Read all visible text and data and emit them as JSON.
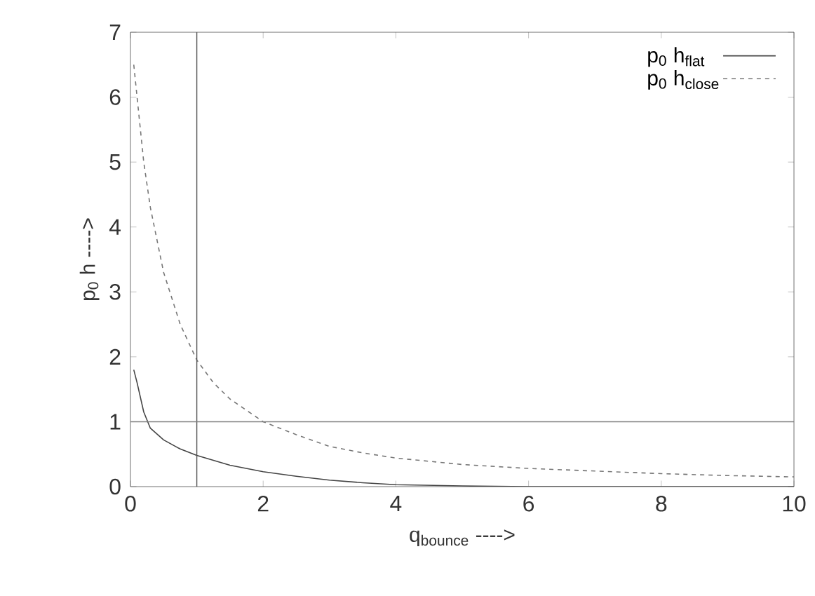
{
  "chart_data": {
    "type": "line",
    "xlabel": "q$_{bounce}$ ---->",
    "ylabel": "p$_{0}$ h ---->",
    "xlim": [
      0,
      10
    ],
    "ylim": [
      0,
      7
    ],
    "xticks": [
      0,
      2,
      4,
      6,
      8,
      10
    ],
    "yticks": [
      0,
      1,
      2,
      3,
      4,
      5,
      6,
      7
    ],
    "legend": "top right",
    "series": [
      {
        "name": "p$_{0}$ h$_{flat}$",
        "color": "#444444",
        "line_style": "solid",
        "x": [
          0.05,
          0.1,
          0.2,
          0.3,
          0.5,
          0.75,
          1,
          1.5,
          2,
          2.5,
          3,
          3.5,
          4,
          5,
          6,
          8,
          10
        ],
        "values": [
          1.8,
          1.6,
          1.15,
          0.9,
          0.72,
          0.58,
          0.48,
          0.33,
          0.23,
          0.16,
          0.1,
          0.06,
          0.03,
          0.01,
          0,
          0,
          0
        ]
      },
      {
        "name": "p$_{0}$ h$_{close}$",
        "color": "#777777",
        "line_style": "dashed",
        "x": [
          0.05,
          0.1,
          0.2,
          0.3,
          0.5,
          0.75,
          1,
          1.25,
          1.5,
          2,
          2.5,
          3,
          3.5,
          4,
          5,
          6,
          7,
          8,
          9,
          10
        ],
        "values": [
          6.5,
          6.0,
          5.0,
          4.3,
          3.3,
          2.5,
          1.95,
          1.6,
          1.35,
          1.0,
          0.8,
          0.62,
          0.52,
          0.44,
          0.34,
          0.28,
          0.24,
          0.2,
          0.17,
          0.15
        ]
      }
    ],
    "ref_lines": [
      {
        "axis": "x",
        "value": 1,
        "color": "#555555"
      },
      {
        "axis": "y",
        "value": 1,
        "color": "#808080"
      }
    ]
  }
}
